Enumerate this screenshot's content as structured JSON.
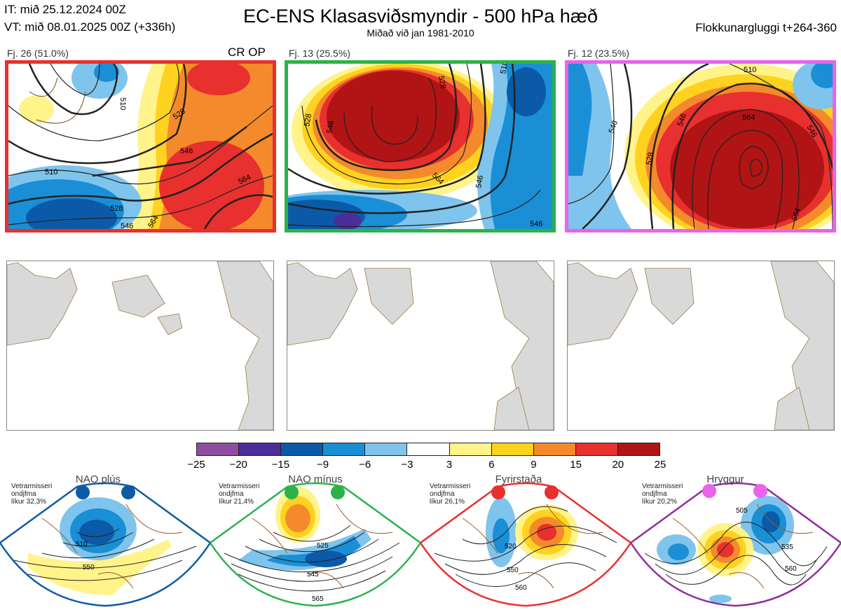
{
  "header": {
    "it": "IT: mið 25.12.2024 00Z",
    "vt": "VT: mið 08.01.2025 00Z  (+336h)",
    "title": "EC-ENS Klasasviðsmyndir - 500 hPa hæð",
    "subtitle": "Miðað við jan 1981-2010",
    "window": "Flokkunargluggi t+264-360"
  },
  "clusters": [
    {
      "label": "Fj. 26 (51.0%)",
      "tag": "CR OP",
      "border": "#e8302e",
      "contours": [
        "510",
        "528",
        "546",
        "564",
        "510",
        "528",
        "546",
        "564"
      ]
    },
    {
      "label": "Fj. 13 (25.5%)",
      "tag": "",
      "border": "#2bb34a",
      "contours": [
        "528",
        "546",
        "564",
        "546",
        "528",
        "510",
        "546"
      ]
    },
    {
      "label": "Fj. 12 (23.5%)",
      "tag": "",
      "border": "#e864e8",
      "contours": [
        "546",
        "564",
        "546",
        "528",
        "510",
        "546",
        "564"
      ]
    }
  ],
  "colorbar": {
    "colors": [
      "#8e4ea0",
      "#4b2d9c",
      "#0b5aa8",
      "#1a8fd6",
      "#7fc4ec",
      "#ffffff",
      "#fff38a",
      "#ffd21f",
      "#f48a2c",
      "#e8302e",
      "#b01414"
    ],
    "ticks": [
      "−25",
      "−20",
      "−15",
      "−9",
      "−6",
      "−3",
      "3",
      "6",
      "9",
      "15",
      "20",
      "25"
    ]
  },
  "regimes": [
    {
      "title": "NAO plús",
      "info_lines": [
        "Vetrarmisseri",
        "ondjfma",
        "líkur 32,3%"
      ],
      "outline": "#0e5aa6",
      "dot": "#0e5aa6",
      "labels": [
        "510",
        "550"
      ]
    },
    {
      "title": "NAO mínus",
      "info_lines": [
        "Vetrarmisseri",
        "ondjfma",
        "líkur 21,4%"
      ],
      "outline": "#2bb34a",
      "dot": "#2bb34a",
      "labels": [
        "525",
        "545",
        "565"
      ]
    },
    {
      "title": "Fyrirstaða",
      "info_lines": [
        "Vetrarmisseri",
        "ondjfma",
        "líkur 26,1%"
      ],
      "outline": "#e8302e",
      "dot": "#e8302e",
      "labels": [
        "520",
        "550",
        "560"
      ]
    },
    {
      "title": "Hryggur",
      "info_lines": [
        "Vetrarmisseri",
        "ondjfma",
        "líkur 20,2%"
      ],
      "outline": "#8e2f9a",
      "dot": "#e864e8",
      "labels": [
        "505",
        "535",
        "560"
      ]
    }
  ]
}
